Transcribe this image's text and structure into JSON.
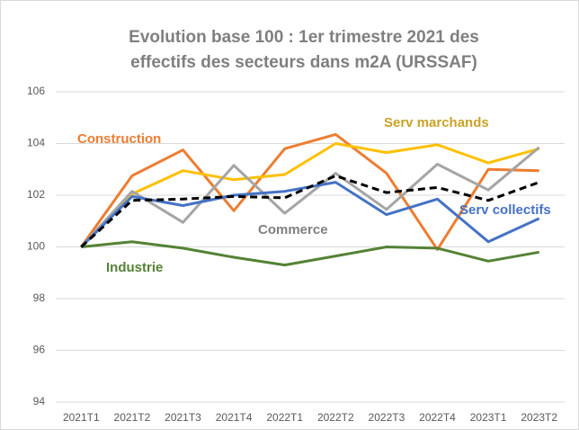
{
  "chart_data": {
    "type": "line",
    "title": [
      "Evolution base 100 : 1er trimestre 2021 des",
      "effectifs des secteurs dans m2A (URSSAF)"
    ],
    "categories": [
      "2021T1",
      "2021T2",
      "2021T3",
      "2021T4",
      "2022T1",
      "2022T2",
      "2022T3",
      "2022T4",
      "2023T1",
      "2023T2"
    ],
    "series": [
      {
        "name": "Construction",
        "color": "#ED7D31",
        "values": [
          100,
          102.75,
          103.75,
          101.4,
          103.8,
          104.35,
          102.85,
          99.9,
          103.0,
          102.95
        ]
      },
      {
        "name": "Serv marchands",
        "color": "#FFC000",
        "values": [
          100,
          102.05,
          102.95,
          102.6,
          102.8,
          104.0,
          103.65,
          103.95,
          103.25,
          103.8
        ]
      },
      {
        "name": "Commerce",
        "color": "#A5A5A5",
        "values": [
          100,
          102.15,
          100.95,
          103.15,
          101.3,
          102.85,
          101.45,
          103.2,
          102.2,
          103.85
        ]
      },
      {
        "name": "Serv collectifs",
        "color": "#4472C4",
        "values": [
          100,
          101.95,
          101.6,
          102.0,
          102.15,
          102.5,
          101.25,
          101.85,
          100.2,
          101.1
        ]
      },
      {
        "name": "Industrie",
        "color": "#548235",
        "values": [
          100,
          100.2,
          99.95,
          99.6,
          99.3,
          99.65,
          100.0,
          99.95,
          99.45,
          99.8
        ]
      },
      {
        "color": "#000000",
        "dashed": true,
        "values": [
          100,
          101.8,
          101.85,
          101.95,
          101.9,
          102.75,
          102.1,
          102.3,
          101.8,
          102.5
        ]
      }
    ],
    "ylim": [
      94,
      106
    ],
    "yticks": [
      94,
      96,
      98,
      100,
      102,
      104,
      106
    ],
    "grid": true
  }
}
